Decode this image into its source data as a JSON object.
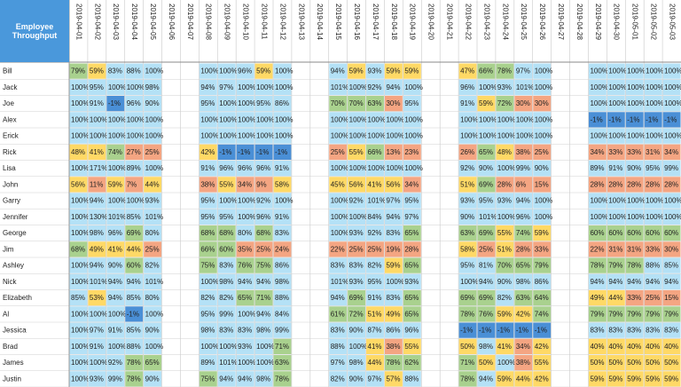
{
  "header": {
    "title": "Employee Throughput"
  },
  "table": {
    "columns": [
      "2019-04-01",
      "2019-04-02",
      "2019-04-03",
      "2019-04-04",
      "2019-04-05",
      "2019-04-06",
      "2019-04-07",
      "2019-04-08",
      "2019-04-09",
      "2019-04-10",
      "2019-04-11",
      "2019-04-12",
      "2019-04-13",
      "2019-04-14",
      "2019-04-15",
      "2019-04-16",
      "2019-04-17",
      "2019-04-18",
      "2019-04-19",
      "2019-04-20",
      "2019-04-21",
      "2019-04-22",
      "2019-04-23",
      "2019-04-24",
      "2019-04-25",
      "2019-04-26",
      "2019-04-27",
      "2019-04-28",
      "2019-04-29",
      "2019-04-30",
      "2019-05-01",
      "2019-05-02",
      "2019-05-03"
    ],
    "rows": [
      {
        "name": "Bill",
        "cells": [
          "79%",
          "59%",
          "83%",
          "88%",
          "100%",
          null,
          null,
          "100%",
          "100%",
          "96%",
          "59%",
          "100%",
          null,
          null,
          "94%",
          "59%",
          "93%",
          "59%",
          "59%",
          null,
          null,
          "47%",
          "66%",
          "78%",
          "97%",
          "100%",
          null,
          null,
          "100%",
          "100%",
          "100%",
          "100%",
          "100%"
        ]
      },
      {
        "name": "Jack",
        "cells": [
          "100%",
          "95%",
          "100%",
          "100%",
          "98%",
          null,
          null,
          "94%",
          "97%",
          "100%",
          "100%",
          "100%",
          null,
          null,
          "101%",
          "100%",
          "92%",
          "94%",
          "100%",
          null,
          null,
          "96%",
          "100%",
          "93%",
          "101%",
          "100%",
          null,
          null,
          "100%",
          "100%",
          "100%",
          "100%",
          "100%"
        ]
      },
      {
        "name": "Joe",
        "cells": [
          "100%",
          "91%",
          "-1%",
          "96%",
          "90%",
          null,
          null,
          "95%",
          "100%",
          "100%",
          "95%",
          "86%",
          null,
          null,
          "70%",
          "70%",
          "63%",
          "30%",
          "95%",
          null,
          null,
          "91%",
          "59%",
          "72%",
          "30%",
          "30%",
          null,
          null,
          "100%",
          "100%",
          "100%",
          "100%",
          "100%"
        ]
      },
      {
        "name": "Alex",
        "cells": [
          "100%",
          "100%",
          "100%",
          "100%",
          "100%",
          null,
          null,
          "100%",
          "100%",
          "100%",
          "100%",
          "100%",
          null,
          null,
          "100%",
          "100%",
          "100%",
          "100%",
          "100%",
          null,
          null,
          "100%",
          "100%",
          "100%",
          "100%",
          "100%",
          null,
          null,
          "-1%",
          "-1%",
          "-1%",
          "-1%",
          "-1%"
        ]
      },
      {
        "name": "Erick",
        "cells": [
          "100%",
          "100%",
          "100%",
          "100%",
          "100%",
          null,
          null,
          "100%",
          "100%",
          "100%",
          "100%",
          "100%",
          null,
          null,
          "100%",
          "100%",
          "100%",
          "100%",
          "100%",
          null,
          null,
          "100%",
          "100%",
          "100%",
          "100%",
          "100%",
          null,
          null,
          "100%",
          "100%",
          "100%",
          "100%",
          "100%"
        ]
      },
      {
        "name": "Rick",
        "cells": [
          "48%",
          "41%",
          "74%",
          "27%",
          "25%",
          null,
          null,
          "42%",
          "-1%",
          "-1%",
          "-1%",
          "-1%",
          null,
          null,
          "25%",
          "55%",
          "66%",
          "13%",
          "23%",
          null,
          null,
          "26%",
          "65%",
          "48%",
          "38%",
          "25%",
          null,
          null,
          "34%",
          "33%",
          "33%",
          "31%",
          "34%"
        ]
      },
      {
        "name": "Lisa",
        "cells": [
          "100%",
          "171%",
          "100%",
          "89%",
          "100%",
          null,
          null,
          "91%",
          "96%",
          "96%",
          "96%",
          "91%",
          null,
          null,
          "100%",
          "100%",
          "100%",
          "100%",
          "100%",
          null,
          null,
          "92%",
          "90%",
          "100%",
          "99%",
          "90%",
          null,
          null,
          "89%",
          "91%",
          "90%",
          "95%",
          "99%"
        ]
      },
      {
        "name": "John",
        "cells": [
          "56%",
          "11%",
          "59%",
          "7%",
          "44%",
          null,
          null,
          "38%",
          "55%",
          "34%",
          "9%",
          "58%",
          null,
          null,
          "45%",
          "56%",
          "41%",
          "56%",
          "34%",
          null,
          null,
          "51%",
          "69%",
          "28%",
          "6%",
          "15%",
          null,
          null,
          "28%",
          "28%",
          "28%",
          "28%",
          "28%"
        ]
      },
      {
        "name": "Garry",
        "cells": [
          "100%",
          "94%",
          "100%",
          "100%",
          "93%",
          null,
          null,
          "95%",
          "100%",
          "100%",
          "92%",
          "100%",
          null,
          null,
          "100%",
          "92%",
          "101%",
          "97%",
          "95%",
          null,
          null,
          "93%",
          "95%",
          "93%",
          "94%",
          "100%",
          null,
          null,
          "100%",
          "100%",
          "100%",
          "100%",
          "100%"
        ]
      },
      {
        "name": "Jennifer",
        "cells": [
          "100%",
          "130%",
          "101%",
          "85%",
          "101%",
          null,
          null,
          "95%",
          "95%",
          "100%",
          "96%",
          "91%",
          null,
          null,
          "100%",
          "100%",
          "84%",
          "94%",
          "97%",
          null,
          null,
          "90%",
          "101%",
          "100%",
          "96%",
          "100%",
          null,
          null,
          "100%",
          "100%",
          "100%",
          "100%",
          "100%"
        ]
      },
      {
        "name": "George",
        "cells": [
          "100%",
          "98%",
          "96%",
          "69%",
          "80%",
          null,
          null,
          "68%",
          "68%",
          "80%",
          "68%",
          "83%",
          null,
          null,
          "100%",
          "93%",
          "92%",
          "83%",
          "65%",
          null,
          null,
          "63%",
          "69%",
          "55%",
          "74%",
          "59%",
          null,
          null,
          "60%",
          "60%",
          "60%",
          "60%",
          "60%"
        ]
      },
      {
        "name": "Jim",
        "cells": [
          "68%",
          "49%",
          "41%",
          "44%",
          "25%",
          null,
          null,
          "66%",
          "60%",
          "35%",
          "25%",
          "24%",
          null,
          null,
          "22%",
          "25%",
          "25%",
          "19%",
          "28%",
          null,
          null,
          "58%",
          "25%",
          "51%",
          "28%",
          "33%",
          null,
          null,
          "22%",
          "31%",
          "31%",
          "33%",
          "30%"
        ]
      },
      {
        "name": "Ashley",
        "cells": [
          "100%",
          "94%",
          "90%",
          "60%",
          "82%",
          null,
          null,
          "75%",
          "83%",
          "76%",
          "75%",
          "86%",
          null,
          null,
          "83%",
          "83%",
          "82%",
          "59%",
          "65%",
          null,
          null,
          "95%",
          "81%",
          "70%",
          "65%",
          "79%",
          null,
          null,
          "78%",
          "79%",
          "78%",
          "88%",
          "85%"
        ]
      },
      {
        "name": "Nick",
        "cells": [
          "100%",
          "101%",
          "94%",
          "94%",
          "101%",
          null,
          null,
          "100%",
          "98%",
          "94%",
          "94%",
          "98%",
          null,
          null,
          "101%",
          "93%",
          "95%",
          "100%",
          "93%",
          null,
          null,
          "100%",
          "94%",
          "90%",
          "98%",
          "86%",
          null,
          null,
          "94%",
          "94%",
          "94%",
          "94%",
          "94%"
        ]
      },
      {
        "name": "Elizabeth",
        "cells": [
          "85%",
          "53%",
          "94%",
          "85%",
          "80%",
          null,
          null,
          "82%",
          "82%",
          "65%",
          "71%",
          "88%",
          null,
          null,
          "94%",
          "69%",
          "91%",
          "83%",
          "65%",
          null,
          null,
          "69%",
          "69%",
          "82%",
          "63%",
          "64%",
          null,
          null,
          "49%",
          "44%",
          "33%",
          "25%",
          "15%"
        ]
      },
      {
        "name": "Al",
        "cells": [
          "100%",
          "100%",
          "100%",
          "-1%",
          "100%",
          null,
          null,
          "95%",
          "99%",
          "100%",
          "94%",
          "84%",
          null,
          null,
          "61%",
          "72%",
          "51%",
          "49%",
          "65%",
          null,
          null,
          "78%",
          "76%",
          "59%",
          "42%",
          "74%",
          null,
          null,
          "79%",
          "79%",
          "79%",
          "79%",
          "79%"
        ]
      },
      {
        "name": "Jessica",
        "cells": [
          "100%",
          "97%",
          "91%",
          "85%",
          "90%",
          null,
          null,
          "98%",
          "83%",
          "83%",
          "98%",
          "99%",
          null,
          null,
          "83%",
          "90%",
          "87%",
          "86%",
          "96%",
          null,
          null,
          "-1%",
          "-1%",
          "-1%",
          "-1%",
          "-1%",
          null,
          null,
          "83%",
          "83%",
          "83%",
          "83%",
          "83%"
        ]
      },
      {
        "name": "Brad",
        "cells": [
          "100%",
          "91%",
          "100%",
          "88%",
          "100%",
          null,
          null,
          "100%",
          "100%",
          "93%",
          "100%",
          "71%",
          null,
          null,
          "88%",
          "100%",
          "41%",
          "38%",
          "55%",
          null,
          null,
          "50%",
          "98%",
          "41%",
          "34%",
          "42%",
          null,
          null,
          "40%",
          "40%",
          "40%",
          "40%",
          "40%"
        ]
      },
      {
        "name": "James",
        "cells": [
          "100%",
          "100%",
          "92%",
          "78%",
          "65%",
          null,
          null,
          "89%",
          "101%",
          "100%",
          "100%",
          "63%",
          null,
          null,
          "97%",
          "98%",
          "44%",
          "78%",
          "62%",
          null,
          null,
          "71%",
          "50%",
          "100%",
          "38%",
          "55%",
          null,
          null,
          "50%",
          "50%",
          "50%",
          "50%",
          "50%"
        ]
      },
      {
        "name": "Justin",
        "cells": [
          "100%",
          "93%",
          "99%",
          "78%",
          "90%",
          null,
          null,
          "75%",
          "94%",
          "94%",
          "98%",
          "78%",
          null,
          null,
          "82%",
          "90%",
          "97%",
          "57%",
          "88%",
          null,
          null,
          "78%",
          "94%",
          "59%",
          "44%",
          "42%",
          null,
          null,
          "59%",
          "59%",
          "59%",
          "59%",
          "59%"
        ]
      }
    ]
  }
}
